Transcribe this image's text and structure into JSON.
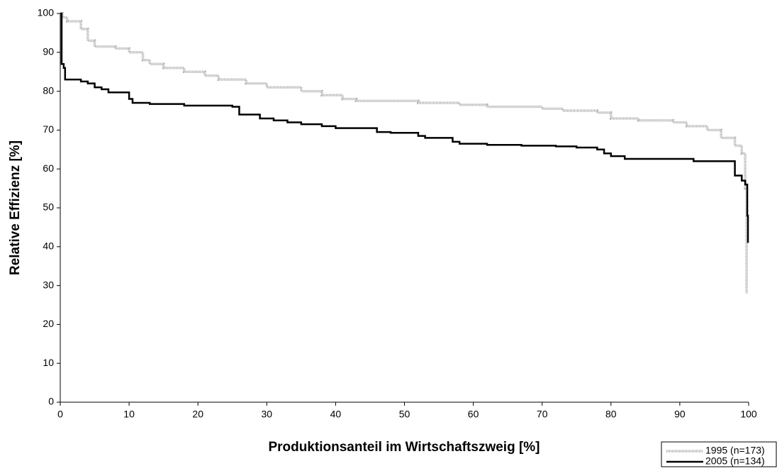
{
  "chart_data": {
    "type": "line",
    "step": true,
    "x_label": "Produktionsanteil im Wirtschaftszweig [%]",
    "y_label": "Relative Effizienz [%]",
    "xlim": [
      0,
      100
    ],
    "ylim": [
      0,
      100
    ],
    "xticks": [
      0,
      10,
      20,
      30,
      40,
      50,
      60,
      70,
      80,
      90,
      100
    ],
    "yticks": [
      0,
      10,
      20,
      30,
      40,
      50,
      60,
      70,
      80,
      90,
      100
    ],
    "legend": "bottom-right",
    "series": [
      {
        "name": "1995 (n=173)",
        "color": "#aaaaaa",
        "x": [
          0,
          0.3,
          1,
          3,
          4,
          5,
          8,
          10,
          12,
          13,
          15,
          18,
          21,
          23,
          27,
          30,
          35,
          38,
          41,
          43,
          52,
          58,
          62,
          70,
          73,
          78,
          80,
          84,
          89,
          91,
          94,
          96,
          98,
          99,
          99.5,
          99.7
        ],
        "values": [
          100,
          99,
          98,
          96,
          93,
          91.5,
          91,
          90,
          88,
          87,
          86,
          85,
          84,
          83,
          82,
          81,
          80,
          79,
          78,
          77.5,
          77,
          76.5,
          76,
          75.5,
          75,
          74.5,
          73,
          72.5,
          72,
          71,
          70,
          68,
          66,
          64,
          55,
          28
        ]
      },
      {
        "name": "2005 (n=134)",
        "color": "#000000",
        "x": [
          0,
          0.2,
          0.5,
          0.7,
          3,
          4,
          5,
          6,
          7,
          10,
          10.5,
          13,
          18,
          25,
          26,
          29,
          31,
          33,
          35,
          38,
          40,
          46,
          48,
          52,
          53,
          57,
          58,
          62,
          67,
          72,
          75,
          78,
          79,
          80,
          82,
          92,
          98,
          99,
          99.5,
          99.8,
          99.9
        ],
        "values": [
          100,
          87,
          86,
          83,
          82.5,
          82,
          81,
          80.5,
          79.7,
          78,
          77,
          76.7,
          76.3,
          76,
          74,
          73,
          72.5,
          72,
          71.5,
          71,
          70.5,
          69.5,
          69.3,
          68.5,
          68,
          67,
          66.5,
          66.2,
          66,
          65.8,
          65.5,
          65,
          64,
          63.3,
          62.6,
          62,
          58.3,
          57,
          56,
          48,
          41
        ]
      }
    ]
  }
}
